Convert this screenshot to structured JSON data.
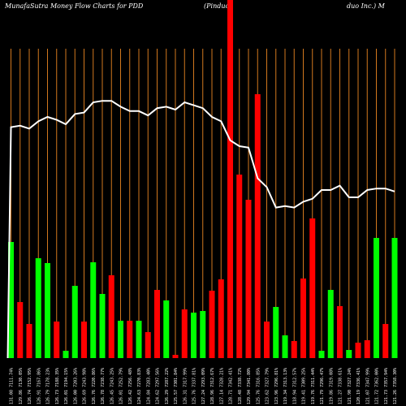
{
  "title": {
    "left": "MunafaSutra  Money Flow  Charts for PDD",
    "middle": "(Pinduo",
    "right": "duo  Inc.) M"
  },
  "colors": {
    "up": "#00ff00",
    "down": "#ff0000",
    "background": "#000000",
    "gridline": "#d2781e",
    "line": "#ffffff"
  },
  "chart_data": {
    "type": "bar",
    "grid": true,
    "tick_labels": [
      "131.08 7111.74%",
      "129.86 7130.05%",
      "126.74 7152.95%",
      "126.91 7167.86%",
      "126.79 7178.23%",
      "126.73 7188.35%",
      "126.01 7194.15%",
      "126.00 7203.26%",
      "126.69 7243.98%",
      "126.76 7220.86%",
      "126.78 7238.77%",
      "126.45 7243.25%",
      "126.01 7252.79%",
      "126.42 7256.48%",
      "124.63 7270.83%",
      "124.84 7283.40%",
      "124.62 7297.56%",
      "126.29 7287.22%",
      "125.57 7301.84%",
      "126.31 7317.99%",
      "125.76 7337.81%",
      "127.24 7293.09%",
      "128.96 7312.67%",
      "127.14 7328.21%",
      "128.71 7342.41%",
      "128.48 7338.72%",
      "129.94 7341.80%",
      "125.76 7316.85%",
      "123.62 7327.79%",
      "123.96 7296.81%",
      "119.34 7313.13%",
      "118.94 7312.57%",
      "119.41 7309.25%",
      "119.76 7311.44%",
      "121.79 7296.47%",
      "119.86 7319.08%",
      "121.27 7338.61%",
      "121.90 7327.24%",
      "120.19 7336.41%",
      "121.07 7347.99%",
      "121.72 7362.00%",
      "121.73 7357.94%",
      "121.26 7358.30%"
    ],
    "bar_colors": [
      "green",
      "red",
      "red",
      "green",
      "green",
      "red",
      "green",
      "green",
      "red",
      "green",
      "green",
      "red",
      "green",
      "red",
      "green",
      "red",
      "red",
      "green",
      "red",
      "red",
      "green",
      "green",
      "red",
      "red",
      "red",
      "red",
      "red",
      "red",
      "red",
      "green",
      "green",
      "red",
      "red",
      "red",
      "green",
      "green",
      "red",
      "green",
      "red",
      "red",
      "green",
      "red",
      "green"
    ],
    "bar_values": [
      143,
      69,
      42,
      123,
      117,
      45,
      9,
      89,
      45,
      118,
      79,
      102,
      46,
      46,
      46,
      32,
      84,
      71,
      4,
      60,
      56,
      58,
      83,
      97,
      999,
      226,
      195,
      325,
      45,
      63,
      28,
      21,
      98,
      172,
      9,
      84,
      64,
      10,
      19,
      22,
      148,
      42,
      148
    ],
    "line_values": [
      158,
      159,
      157,
      162,
      165,
      163,
      160,
      167,
      168,
      175,
      176,
      176,
      172,
      169,
      169,
      166,
      171,
      172,
      170,
      175,
      173,
      171,
      165,
      162,
      149,
      145,
      144,
      123,
      117,
      103,
      104,
      103,
      107,
      109,
      115,
      115,
      118,
      110,
      110,
      115,
      116,
      116,
      114
    ],
    "y_baseline_value": 0
  }
}
